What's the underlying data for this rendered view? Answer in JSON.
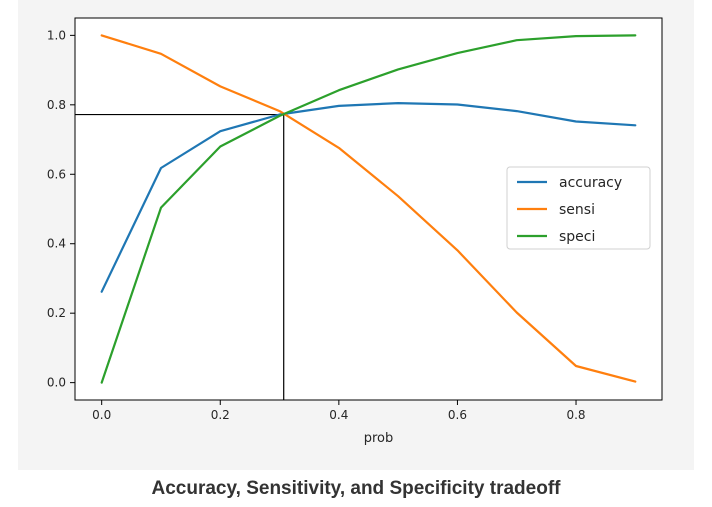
{
  "caption": "Accuracy, Sensitivity, and Specificity tradeoff",
  "chart_data": {
    "type": "line",
    "xlabel": "prob",
    "ylabel": "",
    "xlim": [
      -0.045,
      0.945
    ],
    "ylim": [
      -0.05,
      1.05
    ],
    "xticks": [
      0.0,
      0.2,
      0.4,
      0.6,
      0.8
    ],
    "xtick_labels": [
      "0.0",
      "0.2",
      "0.4",
      "0.6",
      "0.8"
    ],
    "yticks": [
      0.0,
      0.2,
      0.4,
      0.6,
      0.8,
      1.0
    ],
    "ytick_labels": [
      "0.0",
      "0.2",
      "0.4",
      "0.6",
      "0.8",
      "1.0"
    ],
    "grid": false,
    "legend_position": "center-right",
    "x": [
      0.0,
      0.1,
      0.2,
      0.3,
      0.4,
      0.5,
      0.6,
      0.7,
      0.8,
      0.9
    ],
    "series": [
      {
        "name": "accuracy",
        "color": "#1f77b4",
        "values": [
          0.262,
          0.618,
          0.724,
          0.772,
          0.797,
          0.805,
          0.801,
          0.782,
          0.752,
          0.741
        ]
      },
      {
        "name": "sensi",
        "color": "#ff7f0e",
        "values": [
          1.0,
          0.947,
          0.853,
          0.782,
          0.676,
          0.537,
          0.381,
          0.202,
          0.048,
          0.003
        ]
      },
      {
        "name": "speci",
        "color": "#2ca02c",
        "values": [
          0.0,
          0.504,
          0.68,
          0.768,
          0.842,
          0.902,
          0.949,
          0.986,
          0.998,
          1.0
        ]
      }
    ],
    "reference_lines": {
      "color": "#000000",
      "vertical_x": 0.307,
      "horizontal_y": 0.772
    }
  }
}
